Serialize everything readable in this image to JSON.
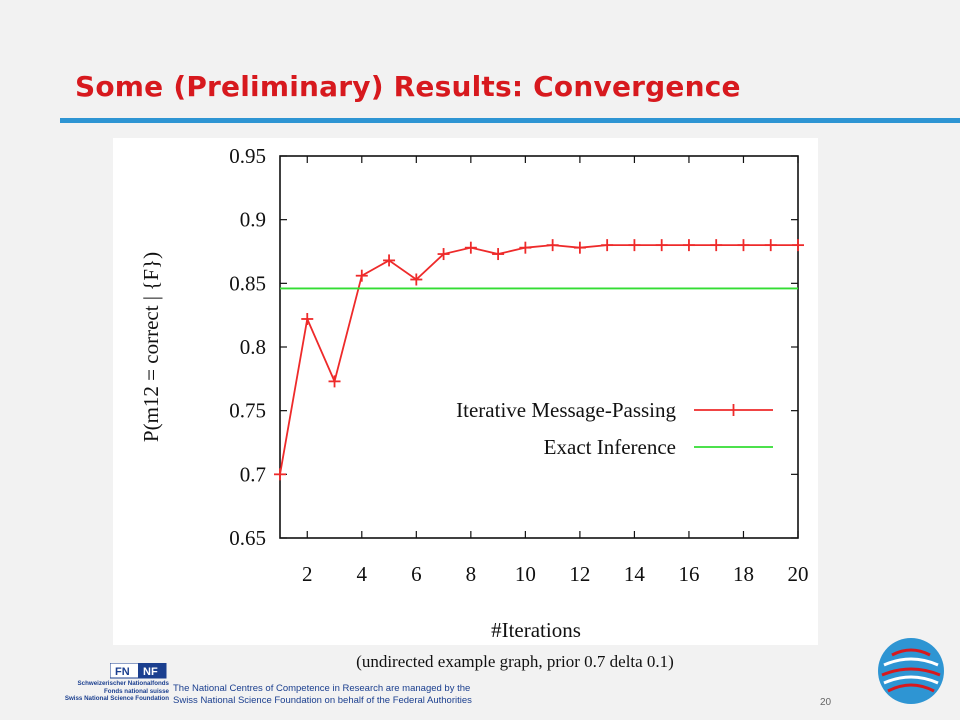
{
  "slide": {
    "title": "Some (Preliminary) Results: Convergence",
    "caption": "(undirected example graph, prior 0.7 delta 0.1)",
    "page_number": "20",
    "footer_line1": "The National Centres of Competence in Research are managed by the",
    "footer_line2": "Swiss National Science Foundation on behalf of the Federal Authorities",
    "snf_line1": "Schweizerischer Nationalfonds",
    "snf_line2": "Fonds national suisse",
    "snf_line3": "Swiss National Science Foundation",
    "snf_mark_left": "FN",
    "snf_mark_right": "NF",
    "colors": {
      "title": "#d7191e",
      "rule": "#2e95d3",
      "footer": "#1b3f8f"
    }
  },
  "chart_data": {
    "type": "line",
    "xlabel": "#Iterations",
    "ylabel": "P(m12 = correct | {F})",
    "xlim": [
      1,
      20
    ],
    "ylim": [
      0.65,
      0.95
    ],
    "xticks": [
      2,
      4,
      6,
      8,
      10,
      12,
      14,
      16,
      18,
      20
    ],
    "yticks": [
      0.65,
      0.7,
      0.75,
      0.8,
      0.85,
      0.9,
      0.95
    ],
    "legend_position": "lower-right",
    "series": [
      {
        "name": "Iterative Message-Passing",
        "color": "#ee2a2a",
        "marker": "plus",
        "x": [
          1,
          2,
          3,
          4,
          5,
          6,
          7,
          8,
          9,
          10,
          11,
          12,
          13,
          14,
          15,
          16,
          17,
          18,
          19,
          20
        ],
        "values": [
          0.7,
          0.822,
          0.773,
          0.856,
          0.868,
          0.853,
          0.873,
          0.878,
          0.873,
          0.878,
          0.88,
          0.878,
          0.88,
          0.88,
          0.88,
          0.88,
          0.88,
          0.88,
          0.88,
          0.88
        ]
      },
      {
        "name": "Exact Inference",
        "color": "#33dd33",
        "marker": "none",
        "x": [
          1,
          20
        ],
        "values": [
          0.846,
          0.846
        ]
      }
    ]
  }
}
